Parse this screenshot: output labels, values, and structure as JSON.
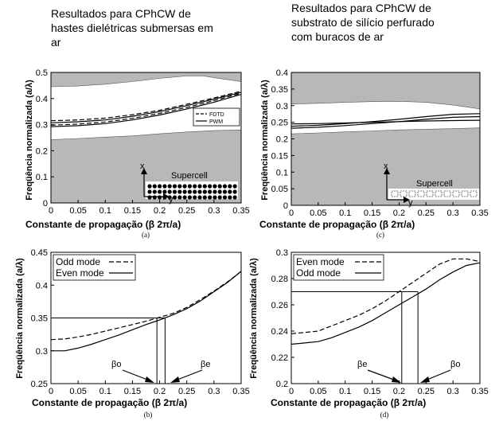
{
  "titles": {
    "left": [
      "Resultados para CPhCW de",
      "hastes dielétricas submersas em",
      "ar"
    ],
    "right": [
      "Resultados para CPhCW de",
      "substrato de silício perfurado",
      "com buracos de ar"
    ]
  },
  "panels": {
    "a": {
      "ylabel": "Freqüência normalizada (a/λ)",
      "xlabel": "Constante de propagação (β 2π/a)",
      "sub": "(a)",
      "legend": [
        "FDTD",
        "PWM"
      ],
      "cell": "Supercell",
      "ax_x": "x",
      "ax_y": "y"
    },
    "b": {
      "ylabel": "Freqüência normalizada (a/λ)",
      "xlabel": "Constante de propagação (β 2π/a)",
      "sub": "(b)",
      "legend": [
        "Odd mode",
        "Even mode"
      ],
      "markers": [
        "βo",
        "βe"
      ]
    },
    "c": {
      "ylabel": "Freqüência normalizada (a/λ)",
      "xlabel": "Constante de propagação (β 2π/a)",
      "sub": "(c)",
      "cell": "Supercell",
      "ax_x": "x",
      "ax_y": "y"
    },
    "d": {
      "ylabel": "Freqüência normalizada (a/λ)",
      "xlabel": "Constante de propagação (β 2π/a)",
      "sub": "(d)",
      "legend": [
        "Even mode",
        "Odd mode"
      ],
      "markers": [
        "βe",
        "βo"
      ]
    }
  },
  "chart_data": [
    {
      "type": "line",
      "panel": "a",
      "xlim": [
        0,
        0.35
      ],
      "ylim": [
        0,
        0.5
      ],
      "xticks": [
        0,
        0.05,
        0.1,
        0.15,
        0.2,
        0.25,
        0.3,
        0.35
      ],
      "yticks": [
        0,
        0.1,
        0.2,
        0.3,
        0.4,
        0.5
      ],
      "bands": {
        "upper_lower_edge": [
          [
            0,
            0.445
          ],
          [
            0.05,
            0.448
          ],
          [
            0.1,
            0.455
          ],
          [
            0.15,
            0.465
          ],
          [
            0.2,
            0.477
          ],
          [
            0.25,
            0.487
          ],
          [
            0.28,
            0.487
          ],
          [
            0.3,
            0.48
          ],
          [
            0.35,
            0.465
          ]
        ],
        "lower_upper_edge": [
          [
            0,
            0.242
          ],
          [
            0.05,
            0.247
          ],
          [
            0.1,
            0.252
          ],
          [
            0.15,
            0.257
          ],
          [
            0.2,
            0.265
          ],
          [
            0.25,
            0.272
          ],
          [
            0.3,
            0.277
          ],
          [
            0.35,
            0.28
          ]
        ],
        "lower_lower_edge": [
          [
            0,
            0
          ],
          [
            0.35,
            0
          ]
        ]
      },
      "series": [
        {
          "name": "FDTD",
          "dash": true,
          "x": [
            0,
            0.05,
            0.1,
            0.15,
            0.2,
            0.25,
            0.3,
            0.35
          ],
          "y": [
            0.315,
            0.318,
            0.325,
            0.338,
            0.355,
            0.378,
            0.402,
            0.428
          ]
        },
        {
          "name": "PWM",
          "dash": false,
          "x": [
            0,
            0.05,
            0.1,
            0.15,
            0.2,
            0.25,
            0.3,
            0.35
          ],
          "y": [
            0.307,
            0.311,
            0.318,
            0.332,
            0.35,
            0.373,
            0.398,
            0.424
          ]
        },
        {
          "dash": false,
          "x": [
            0,
            0.05,
            0.1,
            0.15,
            0.2,
            0.25,
            0.3,
            0.35
          ],
          "y": [
            0.292,
            0.296,
            0.304,
            0.318,
            0.337,
            0.36,
            0.386,
            0.416
          ]
        },
        {
          "dash": true,
          "x": [
            0,
            0.05,
            0.1,
            0.15,
            0.2,
            0.25,
            0.3,
            0.35
          ],
          "y": [
            0.298,
            0.302,
            0.31,
            0.324,
            0.343,
            0.366,
            0.392,
            0.42
          ]
        }
      ]
    },
    {
      "type": "line",
      "panel": "c",
      "xlim": [
        0,
        0.35
      ],
      "ylim": [
        0,
        0.4
      ],
      "xticks": [
        0,
        0.05,
        0.1,
        0.15,
        0.2,
        0.25,
        0.3,
        0.35
      ],
      "yticks": [
        0,
        0.05,
        0.1,
        0.15,
        0.2,
        0.25,
        0.3,
        0.35,
        0.4
      ],
      "bands": {
        "upper_lower_edge": [
          [
            0,
            0.305
          ],
          [
            0.05,
            0.307
          ],
          [
            0.1,
            0.31
          ],
          [
            0.15,
            0.312
          ],
          [
            0.2,
            0.313
          ],
          [
            0.25,
            0.31
          ],
          [
            0.3,
            0.302
          ],
          [
            0.35,
            0.29
          ]
        ],
        "lower_upper_edge": [
          [
            0,
            0.215
          ],
          [
            0.05,
            0.218
          ],
          [
            0.1,
            0.221
          ],
          [
            0.15,
            0.224
          ],
          [
            0.2,
            0.227
          ],
          [
            0.25,
            0.229
          ],
          [
            0.3,
            0.231
          ],
          [
            0.35,
            0.233
          ]
        ],
        "lower_lower_edge": [
          [
            0,
            0
          ],
          [
            0.35,
            0
          ]
        ]
      },
      "series": [
        {
          "dash": false,
          "x": [
            0,
            0.05,
            0.1,
            0.15,
            0.2,
            0.25,
            0.3,
            0.35
          ],
          "y": [
            0.238,
            0.241,
            0.246,
            0.252,
            0.259,
            0.267,
            0.274,
            0.276
          ]
        },
        {
          "dash": false,
          "x": [
            0,
            0.05,
            0.1,
            0.15,
            0.2,
            0.25,
            0.3,
            0.35
          ],
          "y": [
            0.232,
            0.235,
            0.24,
            0.246,
            0.252,
            0.259,
            0.265,
            0.267
          ]
        },
        {
          "dash": false,
          "x": [
            0,
            0.05,
            0.1,
            0.15,
            0.2,
            0.25,
            0.3,
            0.35
          ],
          "y": [
            0.245,
            0.246,
            0.248,
            0.25,
            0.252,
            0.254,
            0.255,
            0.256
          ]
        }
      ]
    },
    {
      "type": "line",
      "panel": "b",
      "xlim": [
        0,
        0.35
      ],
      "ylim": [
        0.25,
        0.45
      ],
      "xticks": [
        0,
        0.05,
        0.1,
        0.15,
        0.2,
        0.25,
        0.3,
        0.35
      ],
      "yticks": [
        0.25,
        0.3,
        0.35,
        0.4,
        0.45
      ],
      "series": [
        {
          "name": "Odd mode",
          "dash": true,
          "x": [
            0,
            0.025,
            0.05,
            0.075,
            0.1,
            0.125,
            0.15,
            0.175,
            0.2,
            0.225,
            0.25,
            0.275,
            0.3,
            0.325,
            0.35
          ],
          "y": [
            0.317,
            0.318,
            0.321,
            0.325,
            0.33,
            0.335,
            0.34,
            0.345,
            0.351,
            0.357,
            0.366,
            0.378,
            0.391,
            0.405,
            0.421
          ]
        },
        {
          "name": "Even mode",
          "dash": false,
          "x": [
            0,
            0.025,
            0.05,
            0.075,
            0.1,
            0.125,
            0.15,
            0.175,
            0.2,
            0.225,
            0.25,
            0.275,
            0.3,
            0.325,
            0.35
          ],
          "y": [
            0.3,
            0.3,
            0.304,
            0.31,
            0.317,
            0.324,
            0.332,
            0.34,
            0.347,
            0.355,
            0.364,
            0.376,
            0.39,
            0.404,
            0.421
          ]
        }
      ],
      "guides": [
        {
          "from": [
            0,
            0.35
          ],
          "to": [
            0.21,
            0.35
          ]
        },
        {
          "x": 0.195,
          "y": [
            0.25,
            0.35
          ]
        },
        {
          "x": 0.21,
          "y": [
            0.25,
            0.35
          ]
        }
      ]
    },
    {
      "type": "line",
      "panel": "d",
      "xlim": [
        0,
        0.35
      ],
      "ylim": [
        0.2,
        0.3
      ],
      "xticks": [
        0,
        0.05,
        0.1,
        0.15,
        0.2,
        0.25,
        0.3,
        0.35
      ],
      "yticks": [
        0.2,
        0.22,
        0.24,
        0.26,
        0.28,
        0.3
      ],
      "series": [
        {
          "name": "Even mode",
          "dash": true,
          "x": [
            0,
            0.025,
            0.05,
            0.075,
            0.1,
            0.125,
            0.15,
            0.175,
            0.2,
            0.225,
            0.25,
            0.275,
            0.3,
            0.325,
            0.35
          ],
          "y": [
            0.238,
            0.239,
            0.24,
            0.244,
            0.248,
            0.252,
            0.257,
            0.263,
            0.27,
            0.277,
            0.284,
            0.291,
            0.295,
            0.295,
            0.293
          ]
        },
        {
          "name": "Odd mode",
          "dash": false,
          "x": [
            0,
            0.025,
            0.05,
            0.075,
            0.1,
            0.125,
            0.15,
            0.175,
            0.2,
            0.225,
            0.25,
            0.275,
            0.3,
            0.325,
            0.35
          ],
          "y": [
            0.23,
            0.231,
            0.232,
            0.235,
            0.239,
            0.243,
            0.248,
            0.254,
            0.26,
            0.266,
            0.272,
            0.279,
            0.285,
            0.29,
            0.292
          ]
        }
      ],
      "guides": [
        {
          "from": [
            0,
            0.27
          ],
          "to": [
            0.235,
            0.27
          ]
        },
        {
          "x": 0.205,
          "y": [
            0.2,
            0.27
          ]
        },
        {
          "x": 0.235,
          "y": [
            0.2,
            0.27
          ]
        }
      ]
    }
  ]
}
